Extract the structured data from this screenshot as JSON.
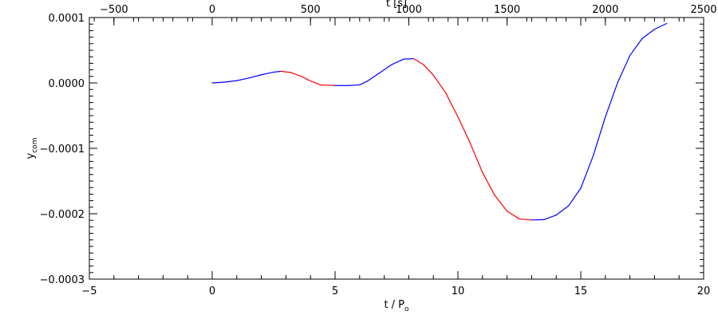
{
  "chart_data": {
    "type": "line",
    "title": "",
    "xlabel": {
      "main": "t / P",
      "sub": "o"
    },
    "ylabel": {
      "main": "y",
      "sub": "com"
    },
    "x2label": "t [s]",
    "xlim": [
      -5,
      20
    ],
    "ylim": [
      -0.0003,
      0.0001
    ],
    "x2lim": [
      -625,
      2500
    ],
    "x_ticks": [
      -5,
      0,
      5,
      10,
      15,
      20
    ],
    "x_tick_labels": [
      "−5",
      "0",
      "5",
      "10",
      "15",
      "20"
    ],
    "x2_ticks": [
      -500,
      0,
      500,
      1000,
      1500,
      2000,
      2500
    ],
    "x2_tick_labels": [
      "−500",
      "0",
      "500",
      "1000",
      "1500",
      "2000",
      "2500"
    ],
    "y_ticks": [
      0.0001,
      0.0,
      -0.0001,
      -0.0002,
      -0.0003
    ],
    "y_tick_labels": [
      "0.0001",
      "0.0000",
      "−0.0001",
      "−0.0002",
      "−0.0003"
    ],
    "grid": false,
    "legend": "none",
    "series_colors": {
      "increasing": "#0000ff",
      "decreasing": "#ff0000"
    },
    "series": [
      {
        "x": [
          0.0,
          0.5,
          1.0,
          1.5,
          2.0,
          2.5,
          2.8,
          3.2,
          3.6,
          4.0,
          4.4,
          5.0,
          5.5,
          6.0,
          6.3,
          6.8,
          7.3,
          7.8,
          8.2,
          8.6,
          9.0,
          9.5,
          10.0,
          10.5,
          11.0,
          11.5,
          12.0,
          12.5,
          13.0,
          13.5,
          14.0,
          14.5,
          15.0,
          15.5,
          16.0,
          16.5,
          17.0,
          17.5,
          18.0,
          18.5
        ],
        "y": [
          0.0,
          1.2e-06,
          3.5e-06,
          7.5e-06,
          1.25e-05,
          1.65e-05,
          1.78e-05,
          1.6e-05,
          1.05e-05,
          3e-06,
          -3e-06,
          -4e-06,
          -4e-06,
          -3e-06,
          2.5e-06,
          1.5e-05,
          2.8e-05,
          3.65e-05,
          3.7e-05,
          2.8e-05,
          1.2e-05,
          -1.5e-05,
          -5.2e-05,
          -9.2e-05,
          -0.000137,
          -0.000172,
          -0.000196,
          -0.000208,
          -0.0002095,
          -0.000209,
          -0.000202,
          -0.000188,
          -0.000161,
          -0.000112,
          -5.2e-05,
          5e-07,
          4.2e-05,
          6.8e-05,
          8.2e-05,
          9.1e-05
        ]
      }
    ]
  }
}
